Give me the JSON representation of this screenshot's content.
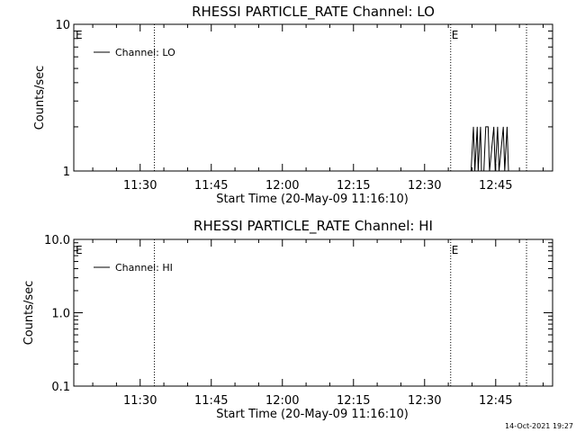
{
  "timestamp": "14-Oct-2021 19:27",
  "chart_data": [
    {
      "type": "line",
      "title": "RHESSI PARTICLE_RATE Channel: LO",
      "ylabel": "Counts/sec",
      "xlabel": "Start Time (20-May-09 11:16:10)",
      "x_unit": "minutes after 11:16:10",
      "xlim": [
        0,
        101
      ],
      "ylim": [
        1,
        10
      ],
      "yscale": "log",
      "yticks": [
        1,
        10
      ],
      "ytick_labels": [
        "1",
        "10"
      ],
      "xticks": [
        14,
        29,
        44,
        59,
        74,
        89
      ],
      "xtick_labels": [
        "11:30",
        "11:45",
        "12:00",
        "12:15",
        "12:30",
        "12:45"
      ],
      "legend": {
        "label": "Channel: LO",
        "placement": "top-left"
      },
      "event_markers": [
        {
          "x": 0.2,
          "label": "E"
        },
        {
          "x": 79.5,
          "label": "E"
        }
      ],
      "dotted_lines_x": [
        17,
        79.5,
        95.5
      ],
      "series": [
        {
          "name": "Channel: LO",
          "x": [
            83.8,
            84.3,
            84.6,
            85.1,
            85.3,
            85.8,
            86.0,
            86.5,
            86.9,
            87.4,
            87.7,
            88.6,
            88.9,
            89.4,
            89.7,
            90.6,
            90.9,
            91.4,
            91.7,
            92.2
          ],
          "y": [
            1,
            2,
            1,
            2,
            1,
            2,
            1,
            1,
            2,
            2,
            1,
            2,
            1,
            2,
            1,
            2,
            1,
            2,
            1,
            1
          ]
        }
      ]
    },
    {
      "type": "line",
      "title": "RHESSI PARTICLE_RATE Channel: HI",
      "ylabel": "Counts/sec",
      "xlabel": "Start Time (20-May-09 11:16:10)",
      "x_unit": "minutes after 11:16:10",
      "xlim": [
        0,
        101
      ],
      "ylim": [
        0.1,
        10
      ],
      "yscale": "log",
      "yticks": [
        0.1,
        1,
        10
      ],
      "ytick_labels": [
        "0.1",
        "1.0",
        "10.0"
      ],
      "xticks": [
        14,
        29,
        44,
        59,
        74,
        89
      ],
      "xtick_labels": [
        "11:30",
        "11:45",
        "12:00",
        "12:15",
        "12:30",
        "12:45"
      ],
      "legend": {
        "label": "Channel: HI",
        "placement": "top-left"
      },
      "event_markers": [
        {
          "x": 0.2,
          "label": "E"
        },
        {
          "x": 79.5,
          "label": "E"
        }
      ],
      "dotted_lines_x": [
        17,
        79.5,
        95.5
      ],
      "series": [
        {
          "name": "Channel: HI",
          "x": [],
          "y": []
        }
      ]
    }
  ]
}
